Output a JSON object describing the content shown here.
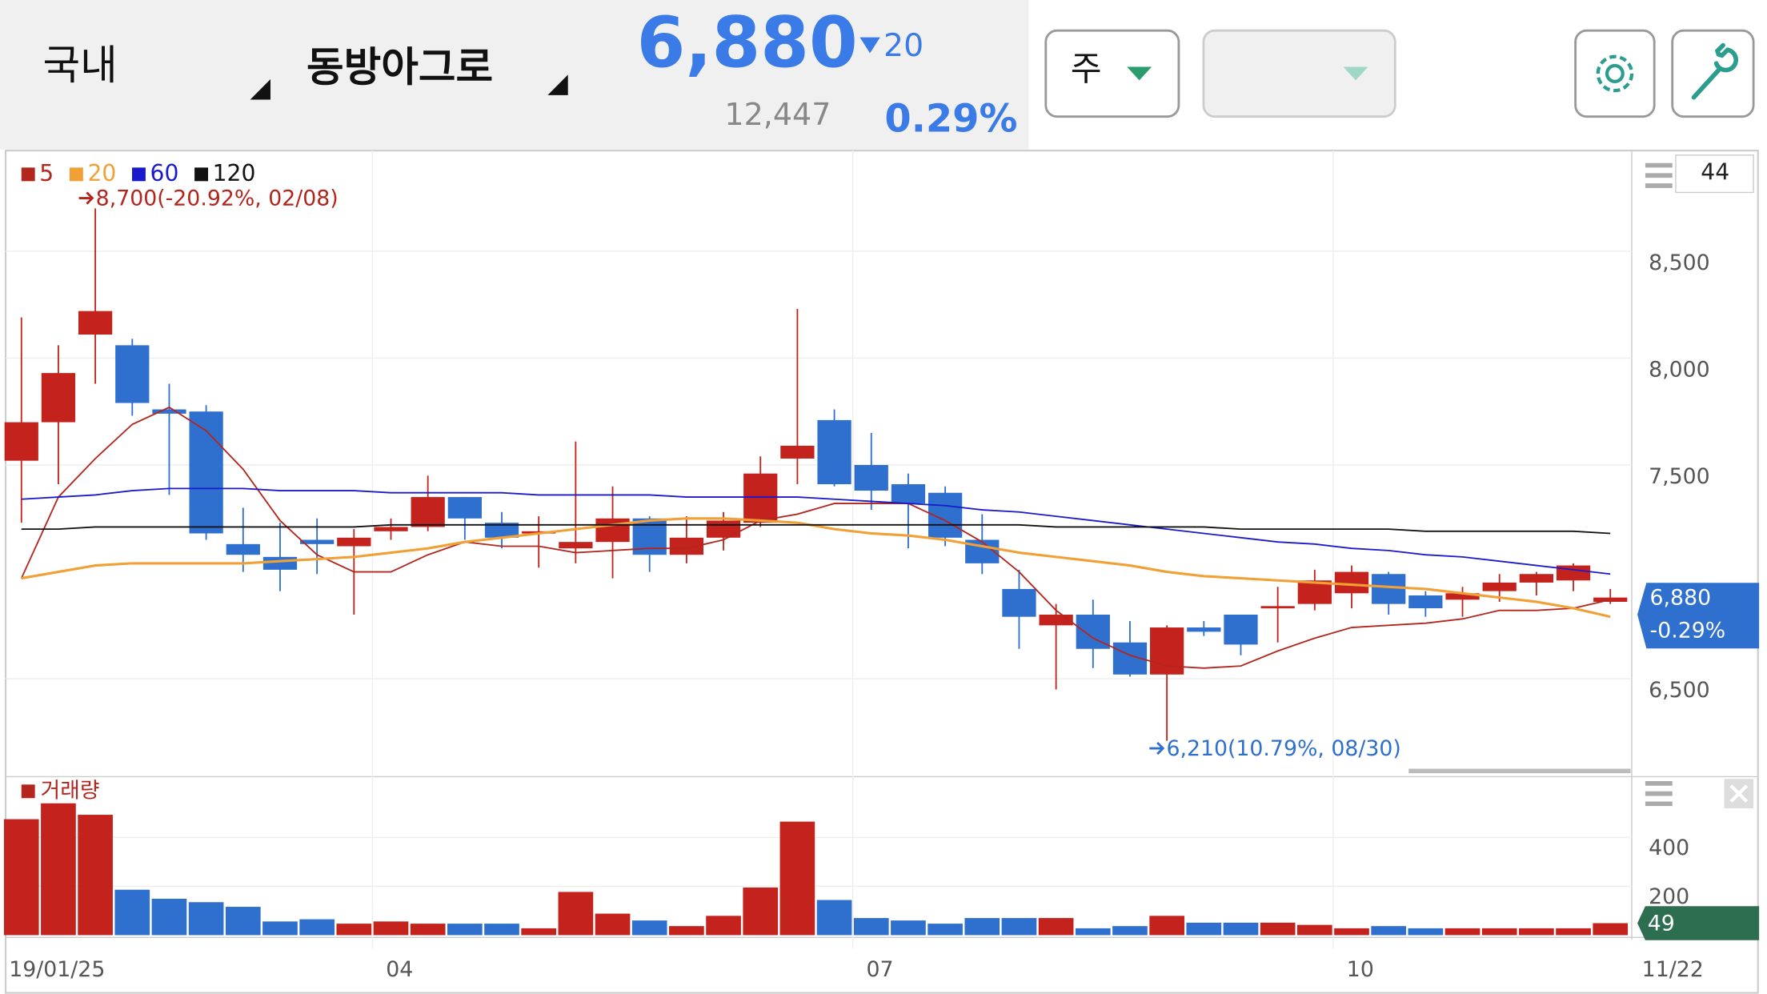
{
  "header": {
    "market": "국내",
    "stock": "동방아그로",
    "price": "6,880",
    "change": "20",
    "volume": "12,447",
    "change_pct": "0.29%",
    "period": "주"
  },
  "chart_data": [
    {
      "type": "candlestick",
      "count": "44",
      "series": [
        {
          "name": "5",
          "color": "#b3261e",
          "values": [
            6970,
            7350,
            7530,
            7690,
            7770,
            7660,
            7480,
            7240,
            7080,
            7000,
            7000,
            7080,
            7140,
            7120,
            7120,
            7090,
            7100,
            7110,
            7110,
            7150,
            7240,
            7270,
            7320,
            7320,
            7320,
            7240,
            7140,
            7000,
            6820,
            6690,
            6610,
            6560,
            6550,
            6560,
            6630,
            6690,
            6740,
            6750,
            6760,
            6780,
            6820,
            6820,
            6830,
            6870
          ]
        },
        {
          "name": "20",
          "color": "#f0a035",
          "values": [
            6970,
            7000,
            7030,
            7040,
            7040,
            7040,
            7040,
            7050,
            7060,
            7070,
            7090,
            7110,
            7140,
            7160,
            7180,
            7200,
            7220,
            7240,
            7250,
            7250,
            7240,
            7230,
            7200,
            7180,
            7170,
            7150,
            7120,
            7090,
            7070,
            7050,
            7030,
            7000,
            6980,
            6970,
            6960,
            6950,
            6940,
            6930,
            6920,
            6900,
            6880,
            6860,
            6830,
            6790
          ]
        },
        {
          "name": "60",
          "color": "#1a1acc",
          "values": [
            7340,
            7350,
            7360,
            7380,
            7390,
            7390,
            7390,
            7380,
            7380,
            7380,
            7370,
            7370,
            7370,
            7370,
            7360,
            7360,
            7360,
            7360,
            7350,
            7350,
            7350,
            7350,
            7340,
            7330,
            7320,
            7310,
            7290,
            7280,
            7260,
            7240,
            7220,
            7200,
            7180,
            7160,
            7140,
            7130,
            7110,
            7100,
            7080,
            7070,
            7050,
            7030,
            7010,
            6990
          ]
        },
        {
          "name": "120",
          "color": "#111111",
          "values": [
            7200,
            7200,
            7210,
            7210,
            7210,
            7210,
            7210,
            7210,
            7210,
            7210,
            7220,
            7220,
            7220,
            7220,
            7220,
            7220,
            7220,
            7220,
            7220,
            7220,
            7220,
            7220,
            7220,
            7220,
            7220,
            7220,
            7220,
            7220,
            7210,
            7210,
            7210,
            7210,
            7210,
            7200,
            7200,
            7200,
            7200,
            7200,
            7190,
            7190,
            7190,
            7190,
            7190,
            7180
          ]
        }
      ],
      "open": [
        7520,
        7700,
        8110,
        8060,
        7760,
        7750,
        7130,
        7070,
        7150,
        7120,
        7190,
        7210,
        7350,
        7230,
        7180,
        7110,
        7140,
        7250,
        7080,
        7160,
        7230,
        7530,
        7710,
        7500,
        7410,
        7370,
        7150,
        6920,
        6750,
        6800,
        6670,
        6520,
        6740,
        6800,
        6830,
        6850,
        6900,
        6990,
        6890,
        6870,
        6910,
        6950,
        6960,
        6860
      ],
      "high": [
        8190,
        8060,
        8700,
        8090,
        7880,
        7780,
        7300,
        7230,
        7250,
        7200,
        7250,
        7450,
        7350,
        7280,
        7260,
        7610,
        7400,
        7260,
        7260,
        7280,
        7540,
        8230,
        7760,
        7650,
        7460,
        7400,
        7270,
        7010,
        6850,
        6870,
        6770,
        6750,
        6770,
        6800,
        6930,
        7010,
        7030,
        7000,
        6910,
        6930,
        6990,
        7000,
        7040,
        6920
      ],
      "low": [
        7230,
        7410,
        7880,
        7730,
        7360,
        7150,
        7000,
        6910,
        6990,
        6800,
        7150,
        7190,
        7150,
        7110,
        7020,
        7040,
        6970,
        7000,
        7040,
        7100,
        7210,
        7410,
        7400,
        7290,
        7110,
        7120,
        6990,
        6640,
        6450,
        6550,
        6510,
        6210,
        6700,
        6610,
        6670,
        6820,
        6830,
        6800,
        6790,
        6790,
        6860,
        6890,
        6910,
        6850
      ],
      "close": [
        7700,
        7930,
        8220,
        7790,
        7740,
        7180,
        7080,
        7010,
        7130,
        7160,
        7210,
        7350,
        7250,
        7160,
        7190,
        7140,
        7250,
        7080,
        7160,
        7240,
        7460,
        7590,
        7410,
        7380,
        7320,
        7160,
        7040,
        6790,
        6800,
        6640,
        6520,
        6740,
        6720,
        6660,
        6840,
        6960,
        7000,
        6850,
        6830,
        6900,
        6950,
        6990,
        7030,
        6880
      ],
      "up_color": "#c3231c",
      "down_color": "#2f6fce",
      "categories": [
        "19/01/25",
        null,
        null,
        null,
        null,
        null,
        null,
        null,
        null,
        null,
        "04",
        null,
        null,
        null,
        null,
        null,
        null,
        null,
        null,
        null,
        null,
        null,
        null,
        "07",
        null,
        null,
        null,
        null,
        null,
        null,
        null,
        null,
        null,
        null,
        null,
        null,
        "10",
        null,
        null,
        null,
        null,
        null,
        null,
        "11/22"
      ],
      "ylim": [
        6090,
        8960
      ],
      "yticks": [
        {
          "value": 6500,
          "label": "6,500"
        },
        {
          "value": 7500,
          "label": "7,500"
        },
        {
          "value": 8000,
          "label": "8,000"
        },
        {
          "value": 8500,
          "label": "8,500"
        }
      ],
      "current": {
        "value": 6880,
        "label": "6,880",
        "change": "-0.29%"
      },
      "annotations": [
        "8,700(-20.92%, 02/08)",
        "6,210(10.79%, 08/30)"
      ],
      "grid": true
    },
    {
      "type": "bar",
      "title": "거래량",
      "color_up": "#c3231c",
      "color_down": "#2f6fce",
      "values": [
        475,
        540,
        493,
        186,
        149,
        135,
        116,
        56,
        65,
        47,
        56,
        47,
        47,
        47,
        28,
        177,
        88,
        60,
        37,
        79,
        195,
        465,
        144,
        70,
        60,
        47,
        70,
        70,
        70,
        28,
        37,
        79,
        51,
        51,
        51,
        42,
        28,
        37,
        28,
        28,
        28,
        28,
        28,
        49
      ],
      "ylim": [
        0,
        640
      ],
      "yticks": [
        200,
        400
      ],
      "current": 49,
      "grid": true
    }
  ]
}
